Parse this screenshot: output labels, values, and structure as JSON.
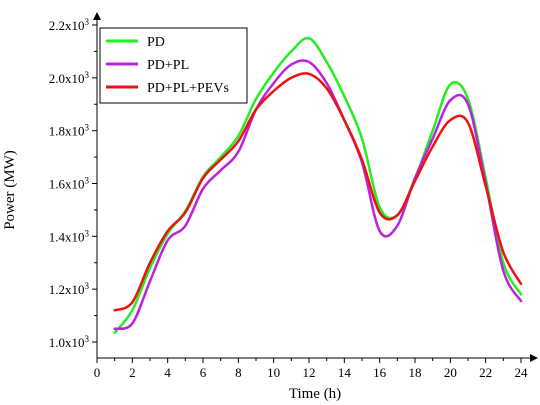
{
  "chart_data": {
    "type": "line",
    "xlabel": "Time (h)",
    "ylabel": "Power (MW)",
    "xlim": [
      0,
      24
    ],
    "ylim": [
      1000,
      2200
    ],
    "xticks": [
      0,
      2,
      4,
      6,
      8,
      10,
      12,
      14,
      16,
      18,
      20,
      22,
      24
    ],
    "xtick_labels": [
      "0",
      "2",
      "4",
      "6",
      "8",
      "10",
      "12",
      "14",
      "16",
      "18",
      "20",
      "22",
      "24"
    ],
    "yticks": [
      1000,
      1200,
      1400,
      1600,
      1800,
      2000,
      2200
    ],
    "ytick_labels": [
      {
        "mant": "1.0x10",
        "exp": "3"
      },
      {
        "mant": "1.2x10",
        "exp": "3"
      },
      {
        "mant": "1.4x10",
        "exp": "3"
      },
      {
        "mant": "1.6x10",
        "exp": "3"
      },
      {
        "mant": "1.8x10",
        "exp": "3"
      },
      {
        "mant": "2.0x10",
        "exp": "3"
      },
      {
        "mant": "2.2x10",
        "exp": "3"
      }
    ],
    "grid": false,
    "legend_position": "top-left",
    "x": [
      1,
      2,
      3,
      4,
      5,
      6,
      7,
      8,
      9,
      10,
      11,
      12,
      13,
      14,
      15,
      16,
      17,
      18,
      19,
      20,
      21,
      22,
      23,
      24
    ],
    "series": [
      {
        "name": "PD",
        "color": "#22ee22",
        "values": [
          1035,
          1120,
          1280,
          1410,
          1495,
          1625,
          1700,
          1780,
          1920,
          2020,
          2100,
          2150,
          2060,
          1930,
          1770,
          1510,
          1480,
          1620,
          1800,
          1975,
          1920,
          1620,
          1300,
          1180
        ]
      },
      {
        "name": "PD+PL",
        "color": "#bb22dd",
        "values": [
          1050,
          1070,
          1230,
          1385,
          1440,
          1580,
          1650,
          1720,
          1880,
          1980,
          2050,
          2060,
          1980,
          1840,
          1680,
          1420,
          1440,
          1620,
          1770,
          1915,
          1900,
          1600,
          1270,
          1155
        ]
      },
      {
        "name": "PD+PL+PEVs",
        "color": "#ee1111",
        "values": [
          1120,
          1150,
          1300,
          1420,
          1490,
          1620,
          1690,
          1760,
          1880,
          1950,
          2000,
          2015,
          1960,
          1840,
          1690,
          1490,
          1480,
          1610,
          1740,
          1840,
          1830,
          1590,
          1340,
          1220
        ]
      }
    ]
  }
}
